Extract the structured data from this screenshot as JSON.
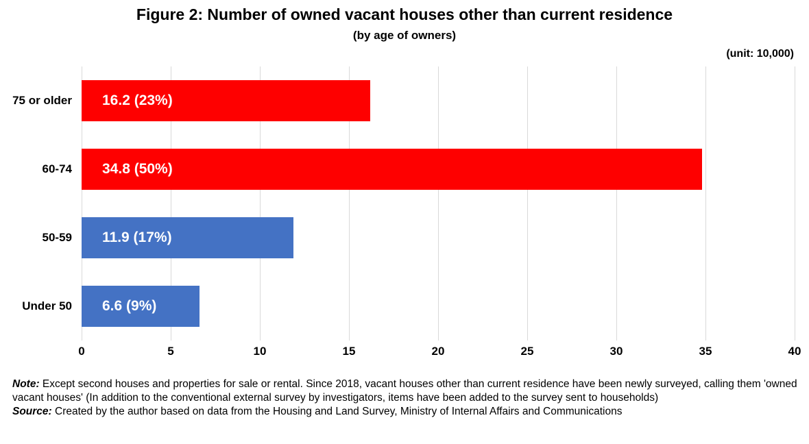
{
  "header": {
    "title": "Figure 2: Number of owned vacant houses other than current residence",
    "subtitle": "(by age of owners)",
    "unit_label": "(unit: 10,000)"
  },
  "chart_data": {
    "type": "bar",
    "orientation": "horizontal",
    "title": "Figure 2: Number of owned vacant houses other than current residence",
    "subtitle": "(by age of owners)",
    "unit": "(unit: 10,000)",
    "categories": [
      "75 or older",
      "60-74",
      "50-59",
      "Under 50"
    ],
    "values": [
      16.2,
      34.8,
      11.9,
      6.6
    ],
    "percentages": [
      23,
      50,
      17,
      9
    ],
    "bar_labels": [
      "16.2 (23%)",
      "34.8 (50%)",
      "11.9 (17%)",
      "6.6 (9%)"
    ],
    "bar_colors": [
      "#fe0000",
      "#fe0000",
      "#4472c4",
      "#4472c4"
    ],
    "xlim": [
      0,
      40
    ],
    "x_ticks": [
      0,
      5,
      10,
      15,
      20,
      25,
      30,
      35,
      40
    ],
    "grid": true,
    "gridline_color": "#d9d9d9",
    "legend": "none"
  },
  "notes": {
    "note_label": "Note:",
    "note_text": " Except second houses and properties for sale or rental. Since 2018, vacant houses other than current residence have been newly surveyed, calling them 'owned vacant houses' (In addition to the conventional external survey by investigators, items have been added to the survey sent to households)",
    "source_label": "Source:",
    "source_text": " Created by the author based on data from the Housing and Land Survey, Ministry of Internal Affairs and Communications"
  }
}
